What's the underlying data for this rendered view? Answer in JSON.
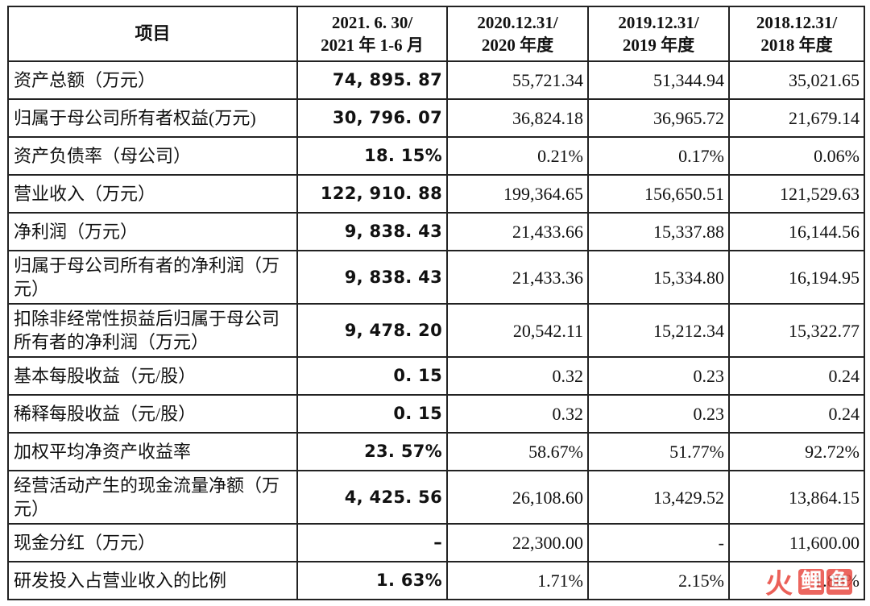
{
  "table": {
    "headers": [
      {
        "lines": [
          "项目"
        ]
      },
      {
        "lines": [
          "2021. 6. 30/",
          "2021 年 1-6 月"
        ]
      },
      {
        "lines": [
          "2020.12.31/",
          "2020 年度"
        ]
      },
      {
        "lines": [
          "2019.12.31/",
          "2019 年度"
        ]
      },
      {
        "lines": [
          "2018.12.31/",
          "2018 年度"
        ]
      }
    ],
    "rows": [
      {
        "label": "资产总额（万元）",
        "values": [
          "74, 895. 87",
          "55,721.34",
          "51,344.94",
          "35,021.65"
        ],
        "tall": false
      },
      {
        "label": "归属于母公司所有者权益(万元)",
        "values": [
          "30, 796. 07",
          "36,824.18",
          "36,965.72",
          "21,679.14"
        ],
        "tall": false
      },
      {
        "label": "资产负债率（母公司）",
        "values": [
          "18. 15%",
          "0.21%",
          "0.17%",
          "0.06%"
        ],
        "tall": false
      },
      {
        "label": "营业收入（万元）",
        "values": [
          "122, 910. 88",
          "199,364.65",
          "156,650.51",
          "121,529.63"
        ],
        "tall": false
      },
      {
        "label": "净利润（万元）",
        "values": [
          "9, 838. 43",
          "21,433.66",
          "15,337.88",
          "16,144.56"
        ],
        "tall": false
      },
      {
        "label": "归属于母公司所有者的净利润（万元）",
        "values": [
          "9, 838. 43",
          "21,433.36",
          "15,334.80",
          "16,194.95"
        ],
        "tall": true
      },
      {
        "label": "扣除非经常性损益后归属于母公司所有者的净利润（万元）",
        "values": [
          "9, 478. 20",
          "20,542.11",
          "15,212.34",
          "15,322.77"
        ],
        "tall": true
      },
      {
        "label": "基本每股收益（元/股）",
        "values": [
          "0. 15",
          "0.32",
          "0.23",
          "0.24"
        ],
        "tall": false
      },
      {
        "label": "稀释每股收益（元/股）",
        "values": [
          "0. 15",
          "0.32",
          "0.23",
          "0.24"
        ],
        "tall": false
      },
      {
        "label": "加权平均净资产收益率",
        "values": [
          "23. 57%",
          "58.67%",
          "51.77%",
          "92.72%"
        ],
        "tall": false
      },
      {
        "label": "经营活动产生的现金流量净额（万元）",
        "values": [
          "4, 425. 56",
          "26,108.60",
          "13,429.52",
          "13,864.15"
        ],
        "tall": true
      },
      {
        "label": "现金分红（万元）",
        "values": [
          "–",
          "22,300.00",
          "-",
          "11,600.00"
        ],
        "tall": false
      },
      {
        "label": "研发投入占营业收入的比例",
        "values": [
          "1. 63%",
          "1.71%",
          "2.15%",
          "1.88%"
        ],
        "tall": false
      }
    ]
  },
  "watermark": {
    "logo": "火",
    "chars": [
      "鲤",
      "鱼"
    ],
    "color": "#e8453c"
  }
}
